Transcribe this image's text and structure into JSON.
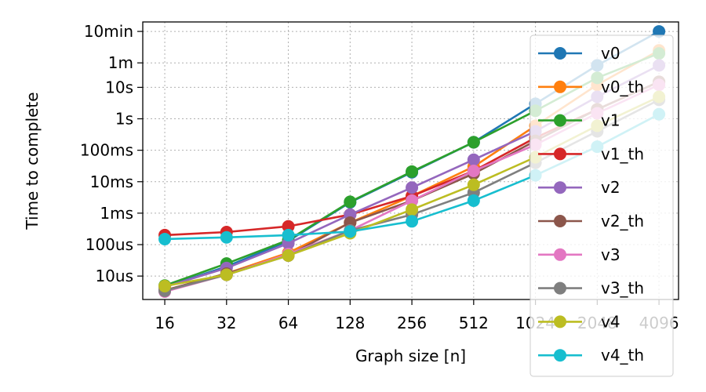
{
  "chart_data": {
    "type": "line",
    "xlabel": "Graph size [n]",
    "ylabel": "Time to complete",
    "x_scale": "log2",
    "y_scale": "log",
    "y_unit": "seconds",
    "grid": true,
    "legend_position": "right",
    "x_ticks": [
      16,
      32,
      64,
      128,
      256,
      512,
      1024,
      2048,
      4096
    ],
    "x_tick_labels": [
      "16",
      "32",
      "64",
      "128",
      "256",
      "512",
      "1024",
      "2048",
      "4096"
    ],
    "y_ticks": [
      1e-05,
      0.0001,
      0.001,
      0.01,
      0.1,
      1,
      10,
      60,
      600
    ],
    "y_tick_labels": [
      "10us",
      "100us",
      "1ms",
      "10ms",
      "100ms",
      "1s",
      "10s",
      "1m",
      "10min"
    ],
    "ylim": [
      1.8e-06,
      1200
    ],
    "xlim": [
      12.5,
      5100
    ],
    "x": [
      16,
      32,
      64,
      128,
      256,
      512,
      1024,
      2048,
      4096
    ],
    "series": [
      {
        "name": "v0",
        "color": "#1f77b4",
        "values": [
          4.5e-06,
          2e-05,
          0.00013,
          0.0022,
          0.02,
          0.18,
          3.0,
          50,
          600
        ]
      },
      {
        "name": "v0_th",
        "color": "#ff7f0e",
        "values": [
          3.5e-06,
          1.2e-05,
          5.5e-05,
          0.0005,
          0.0035,
          0.03,
          0.6,
          12,
          150
        ]
      },
      {
        "name": "v1",
        "color": "#2ca02c",
        "values": [
          5e-06,
          2.5e-05,
          0.00014,
          0.0023,
          0.021,
          0.18,
          1.8,
          20,
          120
        ]
      },
      {
        "name": "v1_th",
        "color": "#d62728",
        "values": [
          0.0002,
          0.00025,
          0.00038,
          0.0009,
          0.0035,
          0.022,
          0.25,
          2.0,
          15
        ]
      },
      {
        "name": "v2",
        "color": "#9467bd",
        "values": [
          4.5e-06,
          1.8e-05,
          0.00011,
          0.0009,
          0.0065,
          0.05,
          0.4,
          5,
          50
        ]
      },
      {
        "name": "v2_th",
        "color": "#8c564b",
        "values": [
          3.5e-06,
          1.2e-05,
          4.5e-05,
          0.0005,
          0.0025,
          0.018,
          0.2,
          2.0,
          15
        ]
      },
      {
        "name": "v3",
        "color": "#e377c2",
        "values": [
          3.2e-06,
          1.1e-05,
          5e-05,
          0.00028,
          0.0025,
          0.022,
          0.15,
          1.5,
          12
        ]
      },
      {
        "name": "v3_th",
        "color": "#7f7f7f",
        "values": [
          3.4e-06,
          1.1e-05,
          4.5e-05,
          0.00028,
          0.0009,
          0.0045,
          0.04,
          0.4,
          4
        ]
      },
      {
        "name": "v4",
        "color": "#bcbd22",
        "values": [
          4.8e-06,
          1.1e-05,
          4.5e-05,
          0.00023,
          0.0013,
          0.008,
          0.06,
          0.6,
          5
        ]
      },
      {
        "name": "v4_th",
        "color": "#17becf",
        "values": [
          0.00015,
          0.00017,
          0.0002,
          0.00026,
          0.00055,
          0.0025,
          0.016,
          0.13,
          1.4
        ]
      }
    ]
  }
}
